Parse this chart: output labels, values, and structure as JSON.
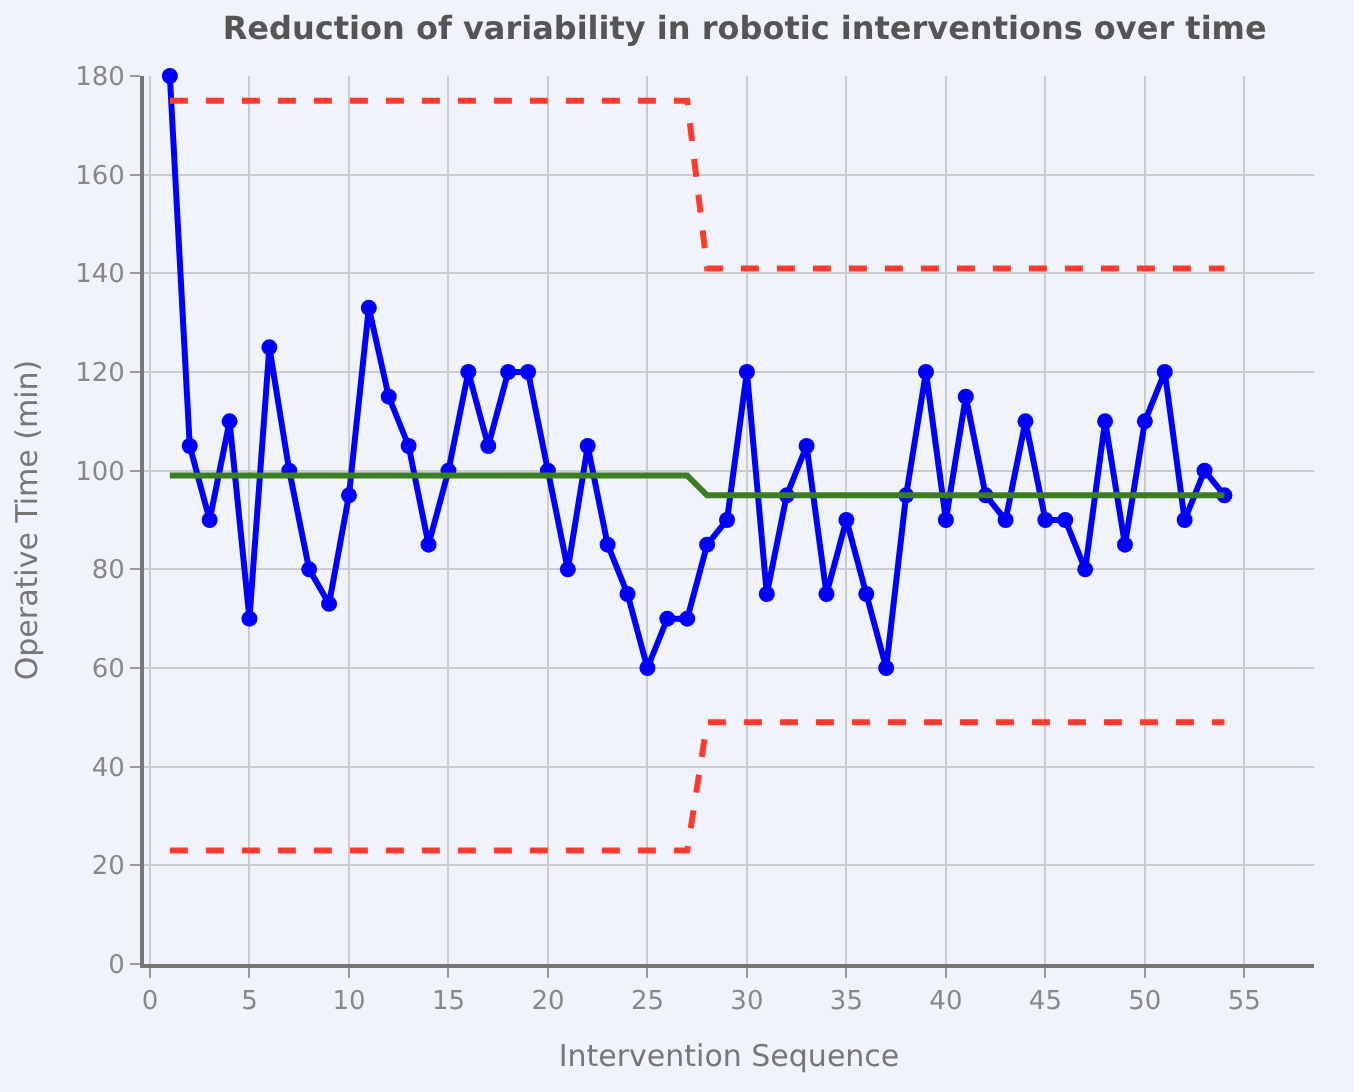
{
  "chart_data": {
    "type": "line",
    "title": "Reduction of variability in robotic interventions over time",
    "xlabel": "Intervention Sequence",
    "ylabel": "Operative Time (min)",
    "x": [
      1,
      2,
      3,
      4,
      5,
      6,
      7,
      8,
      9,
      10,
      11,
      12,
      13,
      14,
      15,
      16,
      17,
      18,
      19,
      20,
      21,
      22,
      23,
      24,
      25,
      26,
      27,
      28,
      29,
      30,
      31,
      32,
      33,
      34,
      35,
      36,
      37,
      38,
      39,
      40,
      41,
      42,
      43,
      44,
      45,
      46,
      47,
      48,
      49,
      50,
      51,
      52,
      53,
      54
    ],
    "series": [
      {
        "color": "#0000ff",
        "marker": "circle",
        "line_style": "solid",
        "values": [
          180,
          105,
          90,
          110,
          70,
          125,
          100,
          80,
          73,
          95,
          133,
          115,
          105,
          85,
          100,
          120,
          105,
          120,
          120,
          100,
          80,
          105,
          85,
          75,
          60,
          70,
          70,
          85,
          90,
          120,
          75,
          95,
          105,
          75,
          90,
          75,
          60,
          95,
          120,
          90,
          115,
          95,
          90,
          110,
          90,
          90,
          80,
          110,
          85,
          110,
          120,
          90,
          100,
          95
        ]
      },
      {
        "color": "#3a7d22",
        "marker": "none",
        "line_style": "solid",
        "x": [
          1,
          27,
          28,
          54
        ],
        "values": [
          99,
          99,
          95,
          95
        ]
      },
      {
        "color": "#ff3b2f",
        "marker": "none",
        "line_style": "dashed",
        "x": [
          1,
          27,
          28,
          54
        ],
        "values": [
          175,
          175,
          141,
          141
        ]
      },
      {
        "color": "#ff3b2f",
        "marker": "none",
        "line_style": "dashed",
        "x": [
          1,
          27,
          28,
          54
        ],
        "values": [
          23,
          23,
          49,
          49
        ]
      }
    ],
    "xlim": [
      -0.3,
      58.5
    ],
    "xticks": [
      0,
      5,
      10,
      15,
      20,
      25,
      30,
      35,
      40,
      45,
      50,
      55
    ],
    "ylim": [
      0,
      180
    ],
    "yticks": [
      0,
      20,
      40,
      60,
      80,
      100,
      120,
      140,
      160,
      180
    ],
    "grid": true
  }
}
